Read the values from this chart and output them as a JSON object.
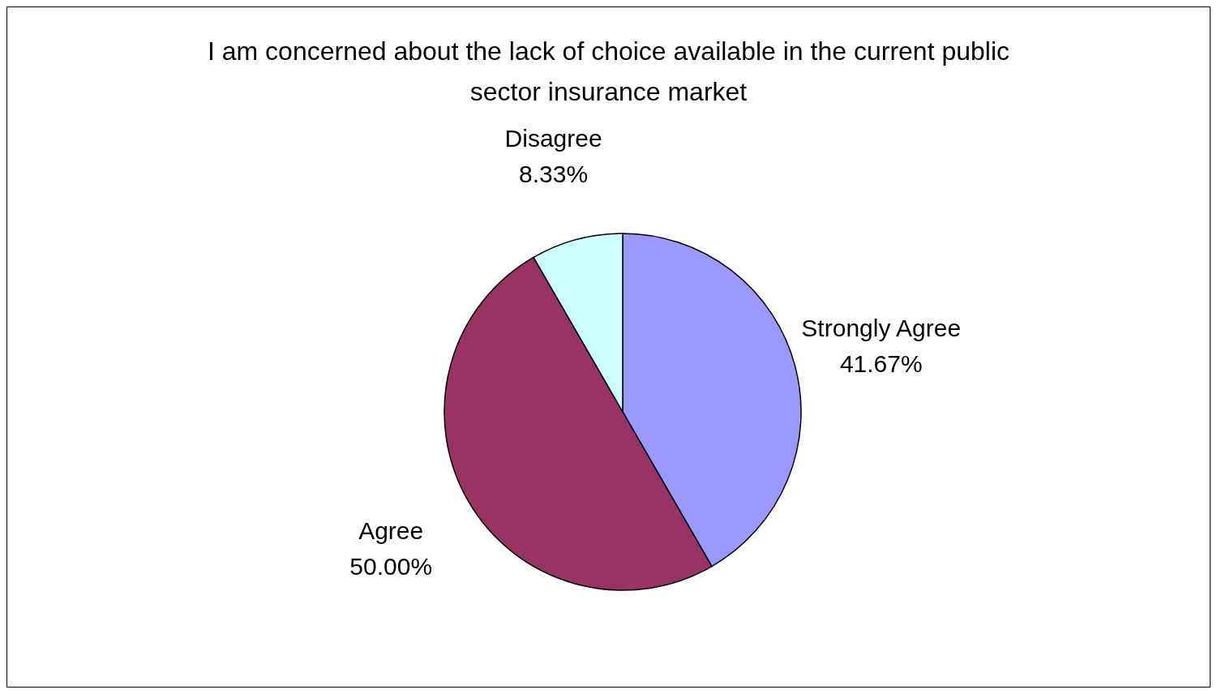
{
  "chart_data": {
    "type": "pie",
    "title": "I am concerned about the lack of choice available in the current public\nsector insurance market",
    "categories": [
      "Strongly Agree",
      "Agree",
      "Disagree"
    ],
    "values": [
      41.67,
      50.0,
      8.33
    ],
    "colors": [
      "#9999ff",
      "#993366",
      "#ccffff"
    ],
    "value_labels": [
      "41.67%",
      "50.00%",
      "8.33%"
    ],
    "legend": false
  }
}
